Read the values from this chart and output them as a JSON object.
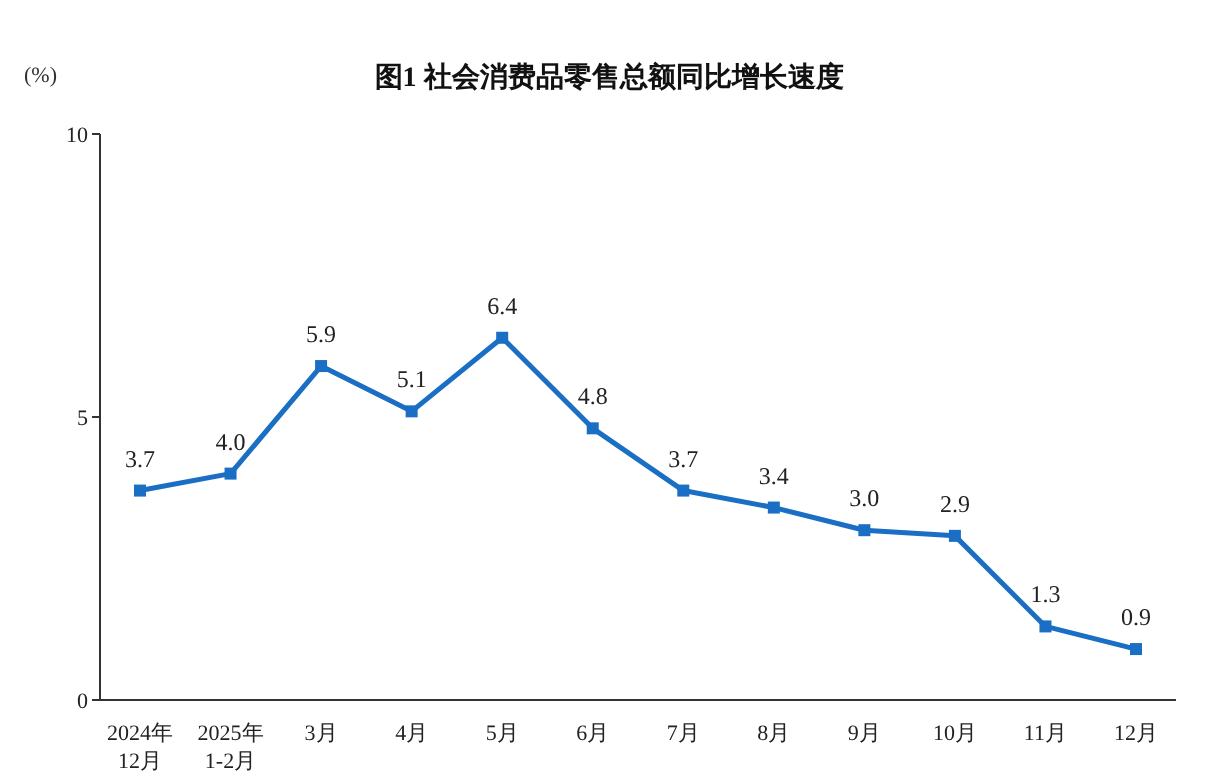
{
  "chart_data": {
    "type": "line",
    "title": "图1 社会消费品零售总额同比增长速度",
    "ylabel": "(%)",
    "categories": [
      "2024年\n12月",
      "2025年\n1-2月",
      "3月",
      "4月",
      "5月",
      "6月",
      "7月",
      "8月",
      "9月",
      "10月",
      "11月",
      "12月"
    ],
    "series": [
      {
        "color": "#1a6fc4",
        "values": [
          3.7,
          4.0,
          5.9,
          5.1,
          6.4,
          4.8,
          3.7,
          3.4,
          3.0,
          2.9,
          1.3,
          0.9
        ],
        "value_labels": [
          "3.7",
          "4.0",
          "5.9",
          "5.1",
          "6.4",
          "4.8",
          "3.7",
          "3.4",
          "3.0",
          "2.9",
          "1.3",
          "0.9"
        ]
      }
    ],
    "ylim": [
      0,
      10
    ],
    "yticks": [
      0,
      5,
      10
    ],
    "grid": false,
    "legend": false,
    "marker": "square",
    "line_style": "solid"
  }
}
